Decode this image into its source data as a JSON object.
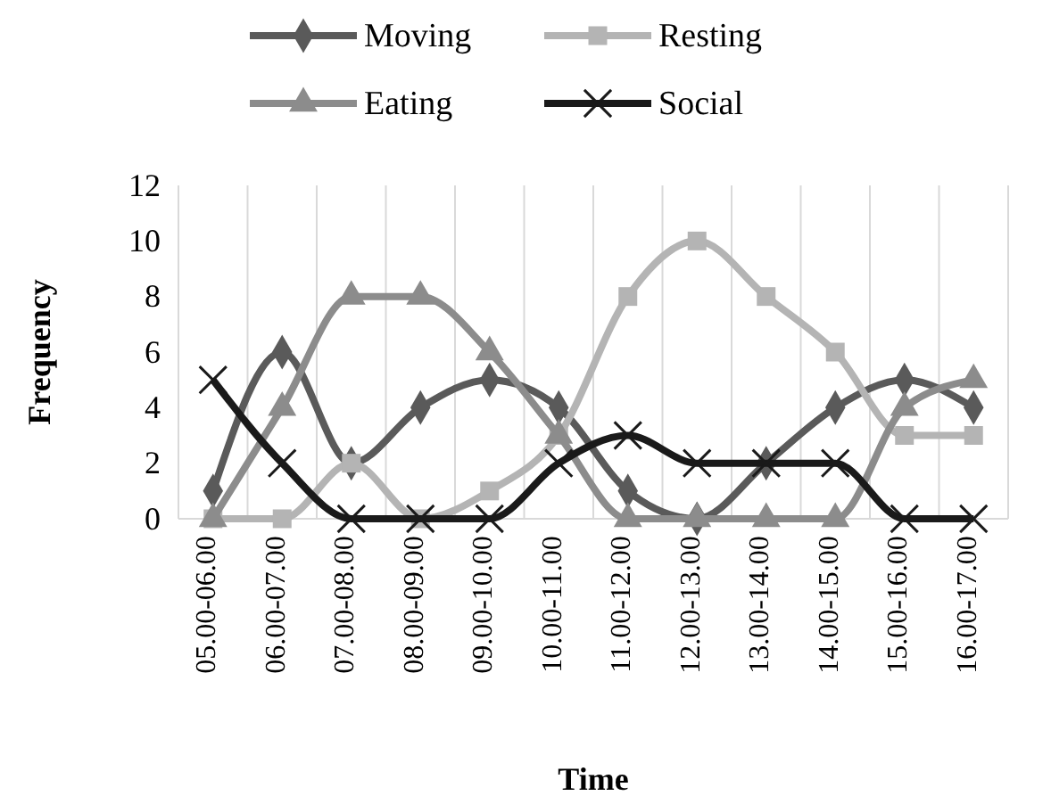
{
  "chart_data": {
    "type": "line",
    "xlabel": "Time",
    "ylabel": "Frequency",
    "categories": [
      "05.00-06.00",
      "06.00-07.00",
      "07.00-08.00",
      "08.00-09.00",
      "09.00-10.00",
      "10.00-11.00",
      "11.00-12.00",
      "12.00-13.00",
      "13.00-14.00",
      "14.00-15.00",
      "15.00-16.00",
      "16.00-17.00"
    ],
    "series": [
      {
        "name": "Moving",
        "color": "#5a5a5a",
        "marker": "diamond",
        "values": [
          1,
          6,
          2,
          4,
          5,
          4,
          1,
          0,
          2,
          4,
          5,
          4
        ]
      },
      {
        "name": "Resting",
        "color": "#b4b4b4",
        "marker": "square",
        "values": [
          0,
          0,
          2,
          0,
          1,
          3,
          8,
          10,
          8,
          6,
          3,
          3
        ]
      },
      {
        "name": "Eating",
        "color": "#8c8c8c",
        "marker": "triangle",
        "values": [
          0,
          4,
          8,
          8,
          6,
          3,
          0,
          0,
          0,
          0,
          4,
          5
        ]
      },
      {
        "name": "Social",
        "color": "#1a1a1a",
        "marker": "cross",
        "values": [
          5,
          2,
          0,
          0,
          0,
          2,
          3,
          2,
          2,
          2,
          0,
          0
        ]
      }
    ],
    "ylim": [
      0,
      12
    ],
    "yticks": [
      0,
      2,
      4,
      6,
      8,
      10,
      12
    ],
    "grid": "x",
    "legend": "top",
    "line_style": "solid"
  }
}
